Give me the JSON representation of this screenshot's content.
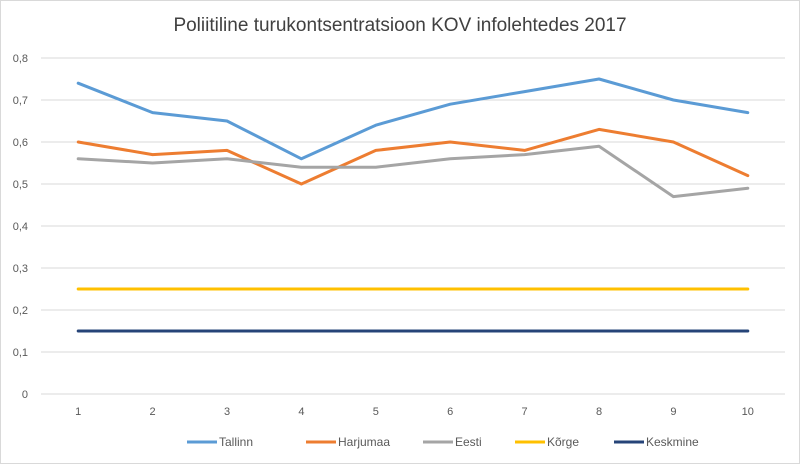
{
  "chart_data": {
    "type": "line",
    "title": "Poliitiline turukontsentratsioon KOV infolehtedes 2017",
    "xlabel": "",
    "ylabel": "",
    "categories": [
      "1",
      "2",
      "3",
      "4",
      "5",
      "6",
      "7",
      "8",
      "9",
      "10"
    ],
    "ylim": [
      0,
      0.8
    ],
    "yticks": [
      "0",
      "0,1",
      "0,2",
      "0,3",
      "0,4",
      "0,5",
      "0,6",
      "0,7",
      "0,8"
    ],
    "grid": true,
    "legend": "bottom",
    "series": [
      {
        "name": "Tallinn",
        "color": "#5b9bd5",
        "values": [
          0.74,
          0.67,
          0.65,
          0.56,
          0.64,
          0.69,
          0.72,
          0.75,
          0.7,
          0.67
        ]
      },
      {
        "name": "Harjumaa",
        "color": "#ed7d31",
        "values": [
          0.6,
          0.57,
          0.58,
          0.5,
          0.58,
          0.6,
          0.58,
          0.63,
          0.6,
          0.52
        ]
      },
      {
        "name": "Eesti",
        "color": "#a5a5a5",
        "values": [
          0.56,
          0.55,
          0.56,
          0.54,
          0.54,
          0.56,
          0.57,
          0.59,
          0.47,
          0.49
        ]
      },
      {
        "name": "Kõrge",
        "color": "#ffc000",
        "values": [
          0.25,
          0.25,
          0.25,
          0.25,
          0.25,
          0.25,
          0.25,
          0.25,
          0.25,
          0.25
        ]
      },
      {
        "name": "Keskmine",
        "color": "#264478",
        "values": [
          0.15,
          0.15,
          0.15,
          0.15,
          0.15,
          0.15,
          0.15,
          0.15,
          0.15,
          0.15
        ]
      }
    ]
  }
}
